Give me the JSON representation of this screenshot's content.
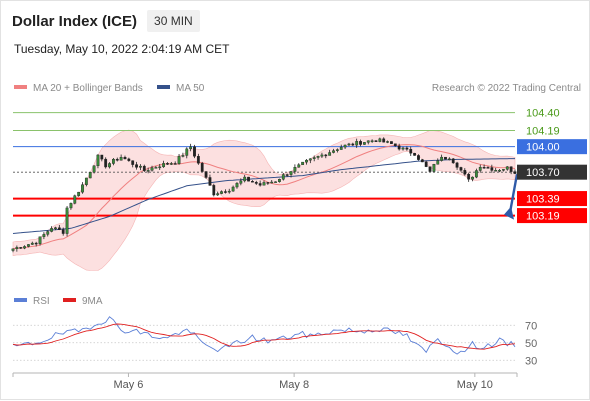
{
  "header": {
    "title": "Dollar Index (ICE)",
    "interval": "30 MIN",
    "timestamp": "Tuesday, May 10, 2022 2:04:19 AM CET"
  },
  "legend": {
    "ma20": {
      "label": "MA 20 + Bollinger Bands",
      "color": "#f08080"
    },
    "ma50": {
      "label": "MA 50",
      "color": "#35518a"
    },
    "credit": "Research © 2022 Trading Central",
    "rsi": {
      "label": "RSI",
      "color": "#5b7fd6"
    },
    "rsi_ma": {
      "label": "9MA",
      "color": "#e02020"
    }
  },
  "chart_data": [
    {
      "type": "candlestick",
      "ylim": [
        102.48,
        104.56
      ],
      "x_ticks": [
        {
          "label": "May 6",
          "x": 0.23
        },
        {
          "label": "May 8",
          "x": 0.56
        },
        {
          "label": "May 10",
          "x": 0.92
        }
      ],
      "levels": [
        {
          "label": "104.40",
          "value": 104.4,
          "color": "#8ac26b",
          "text_color": "#4a9a1a",
          "style": "outline"
        },
        {
          "label": "104.19",
          "value": 104.19,
          "color": "#8ac26b",
          "text_color": "#4a9a1a",
          "style": "outline"
        },
        {
          "label": "104.00",
          "value": 104.0,
          "color": "#3a6fe0",
          "text_color": "#ffffff",
          "style": "fill"
        },
        {
          "label": "103.70",
          "value": 103.7,
          "color": "#333333",
          "text_color": "#ffffff",
          "style": "fill",
          "current": true
        },
        {
          "label": "103.39",
          "value": 103.39,
          "color": "#ff0000",
          "text_color": "#ffffff",
          "style": "fill"
        },
        {
          "label": "103.19",
          "value": 103.19,
          "color": "#ff0000",
          "text_color": "#ffffff",
          "style": "fill"
        }
      ],
      "forecast_arrow": {
        "from": 103.7,
        "to": 103.19,
        "color": "#2e5aa8"
      },
      "anchors": [
        [
          0,
          102.8
        ],
        [
          6,
          102.88
        ],
        [
          10,
          103.05
        ],
        [
          13,
          103.0
        ],
        [
          14,
          103.28
        ],
        [
          18,
          103.55
        ],
        [
          22,
          103.88
        ],
        [
          24,
          103.78
        ],
        [
          28,
          103.88
        ],
        [
          31,
          103.8
        ],
        [
          34,
          103.72
        ],
        [
          38,
          103.78
        ],
        [
          42,
          103.82
        ],
        [
          46,
          104.0
        ],
        [
          48,
          103.8
        ],
        [
          52,
          103.45
        ],
        [
          56,
          103.5
        ],
        [
          60,
          103.62
        ],
        [
          64,
          103.55
        ],
        [
          68,
          103.6
        ],
        [
          72,
          103.72
        ],
        [
          76,
          103.82
        ],
        [
          80,
          103.9
        ],
        [
          85,
          104.0
        ],
        [
          90,
          104.05
        ],
        [
          94,
          104.08
        ],
        [
          98,
          104.03
        ],
        [
          102,
          103.95
        ],
        [
          104,
          103.92
        ],
        [
          108,
          103.7
        ],
        [
          110,
          103.85
        ],
        [
          113,
          103.88
        ],
        [
          115,
          103.78
        ],
        [
          118,
          103.6
        ],
        [
          121,
          103.78
        ],
        [
          125,
          103.73
        ],
        [
          128,
          103.75
        ],
        [
          130,
          103.7
        ]
      ],
      "ma50_anchors": [
        [
          0,
          102.98
        ],
        [
          15,
          103.04
        ],
        [
          25,
          103.18
        ],
        [
          35,
          103.38
        ],
        [
          45,
          103.54
        ],
        [
          55,
          103.6
        ],
        [
          65,
          103.63
        ],
        [
          75,
          103.66
        ],
        [
          85,
          103.73
        ],
        [
          95,
          103.78
        ],
        [
          105,
          103.83
        ],
        [
          115,
          103.85
        ],
        [
          130,
          103.86
        ]
      ]
    },
    {
      "type": "line",
      "name": "RSI",
      "ylim": [
        20,
        84
      ],
      "y_ticks": [
        70,
        50,
        30
      ],
      "anchors": [
        [
          0,
          45
        ],
        [
          6,
          50
        ],
        [
          12,
          60
        ],
        [
          17,
          63
        ],
        [
          22,
          73
        ],
        [
          25,
          78
        ],
        [
          28,
          65
        ],
        [
          32,
          63
        ],
        [
          36,
          58
        ],
        [
          40,
          55
        ],
        [
          44,
          64
        ],
        [
          46,
          62
        ],
        [
          50,
          46
        ],
        [
          54,
          42
        ],
        [
          58,
          50
        ],
        [
          62,
          56
        ],
        [
          66,
          52
        ],
        [
          70,
          55
        ],
        [
          74,
          60
        ],
        [
          78,
          58
        ],
        [
          82,
          63
        ],
        [
          86,
          65
        ],
        [
          90,
          63
        ],
        [
          94,
          66
        ],
        [
          98,
          63
        ],
        [
          102,
          58
        ],
        [
          104,
          48
        ],
        [
          107,
          40
        ],
        [
          110,
          55
        ],
        [
          113,
          45
        ],
        [
          116,
          38
        ],
        [
          119,
          48
        ],
        [
          122,
          45
        ],
        [
          126,
          52
        ],
        [
          128,
          48
        ],
        [
          130,
          48
        ]
      ]
    }
  ]
}
